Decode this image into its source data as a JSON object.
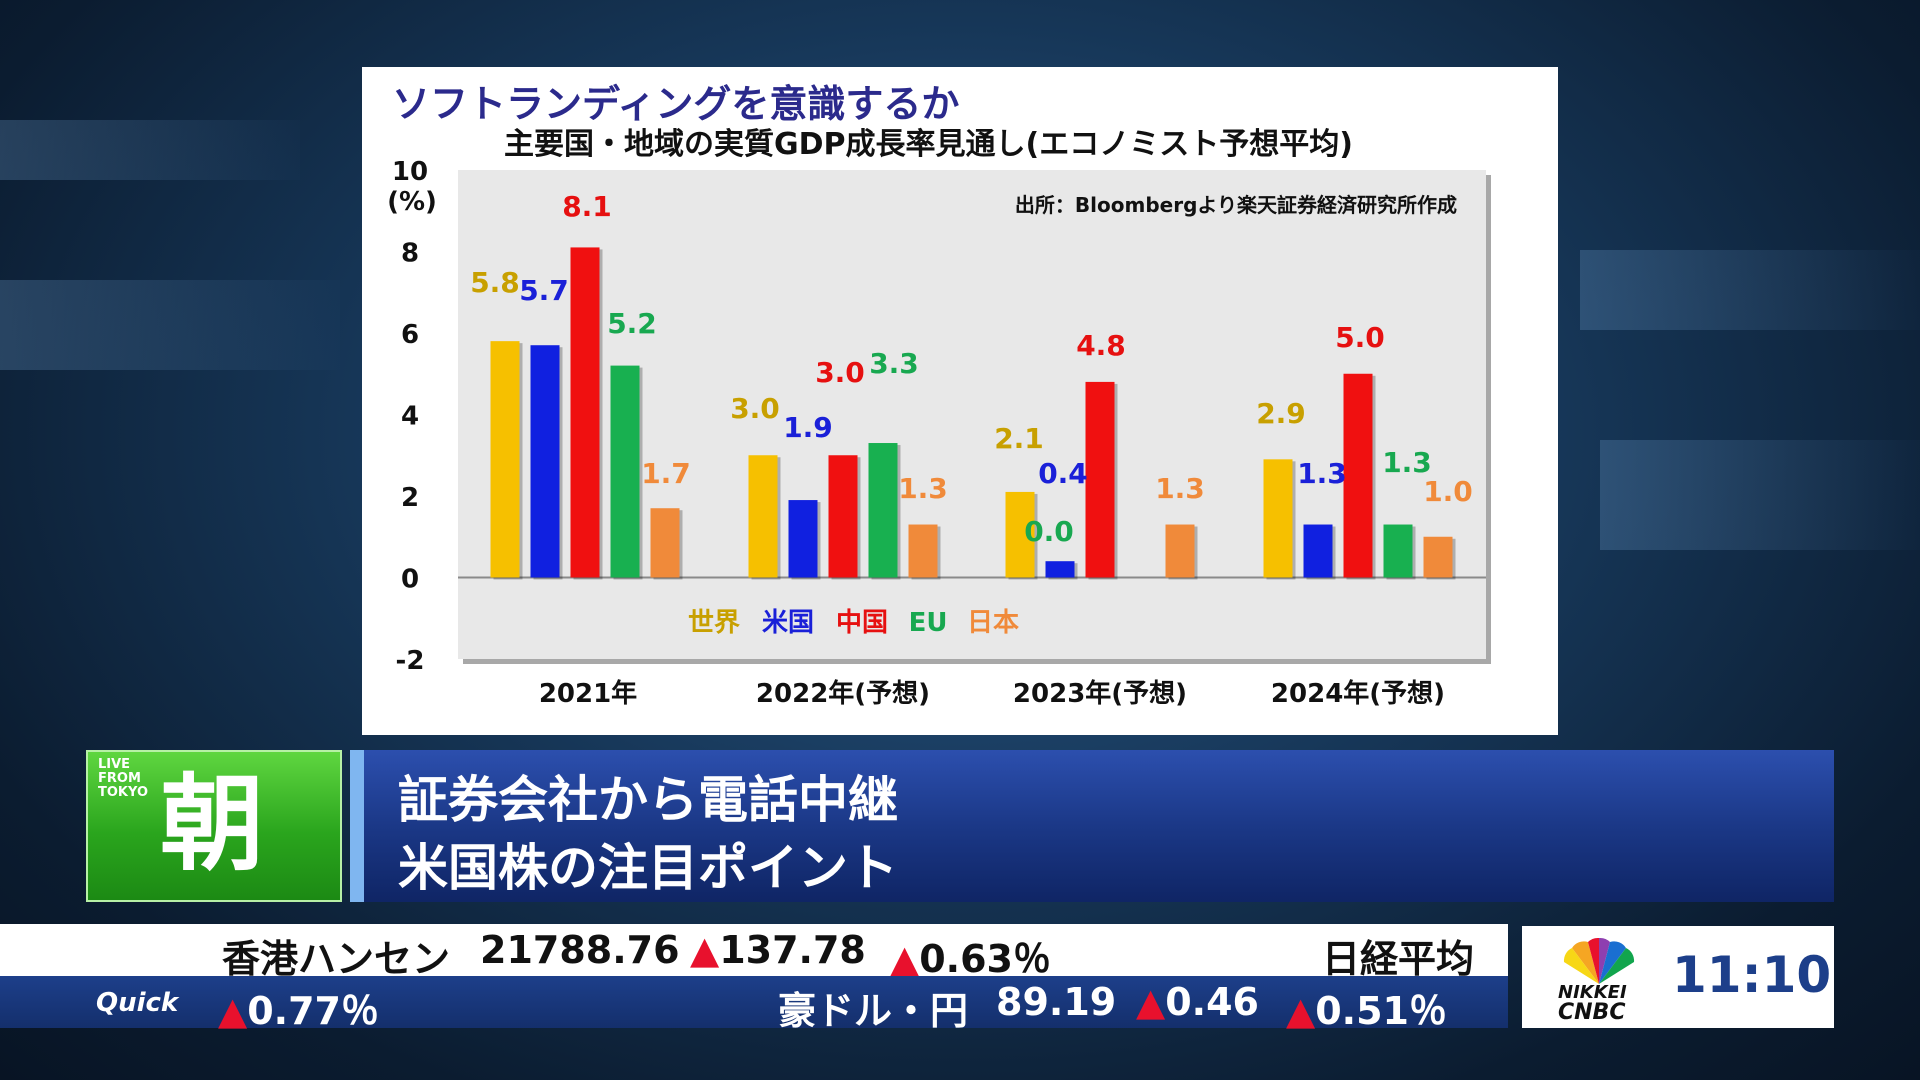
{
  "chart": {
    "title": "ソフトランディングを意識するか",
    "subtitle": "主要国・地域の実質GDP成長率見通し(エコノミスト予想平均)",
    "source": "出所：Bloombergより楽天証券経済研究所作成",
    "y_unit": "(%)"
  },
  "chart_data": {
    "type": "bar",
    "categories": [
      "2021年",
      "2022年(予想)",
      "2023年(予想)",
      "2024年(予想)"
    ],
    "series": [
      {
        "name": "世界",
        "color": "#f6c000",
        "label_color": "#c8a000",
        "values": [
          5.8,
          3.0,
          2.1,
          2.9
        ]
      },
      {
        "name": "米国",
        "color": "#1020e0",
        "label_color": "#1a20d8",
        "values": [
          5.7,
          1.9,
          0.4,
          1.3
        ]
      },
      {
        "name": "中国",
        "color": "#f01010",
        "label_color": "#e61010",
        "values": [
          8.1,
          3.0,
          4.8,
          5.0
        ]
      },
      {
        "name": "EU",
        "color": "#18b050",
        "label_color": "#18a850",
        "values": [
          5.2,
          3.3,
          0.0,
          1.3
        ]
      },
      {
        "name": "日本",
        "color": "#f08a3a",
        "label_color": "#f08a3a",
        "values": [
          1.7,
          1.3,
          1.3,
          1.0
        ]
      }
    ],
    "value_labels": [
      [
        "5.8",
        "3.0",
        "2.1",
        "2.9"
      ],
      [
        "5.7",
        "1.9",
        "0.4",
        "1.3"
      ],
      [
        "8.1",
        "3.0",
        "4.8",
        "5.0"
      ],
      [
        "5.2",
        "3.3",
        "0.0",
        "1.3"
      ],
      [
        "1.7",
        "1.3",
        "1.3",
        "1.0"
      ]
    ],
    "ylim": [
      -2,
      10
    ],
    "yticks": [
      "-2",
      "0",
      "2",
      "4",
      "6",
      "8",
      "10"
    ],
    "legend_position": "bottom-inside"
  },
  "headline": {
    "live_lines": [
      "LIVE",
      "FROM",
      "TOKYO"
    ],
    "program": "朝",
    "line1": "証券会社から電話中継",
    "line2": "米国株の注目ポイント"
  },
  "ticker": {
    "top": {
      "name": "香港ハンセン",
      "value": "21788.76",
      "change": "▲137.78",
      "pct": "▲0.63％",
      "next_name": "日経平均"
    },
    "bottom": {
      "brand": "Quick",
      "prev_pct": "▲0.77％",
      "name": "豪ドル・円",
      "value": "89.19",
      "change": "▲0.46",
      "pct": "▲0.51％"
    }
  },
  "logo": {
    "line1": "NIKKEI",
    "line2": "CNBC",
    "clock": "11:10"
  }
}
